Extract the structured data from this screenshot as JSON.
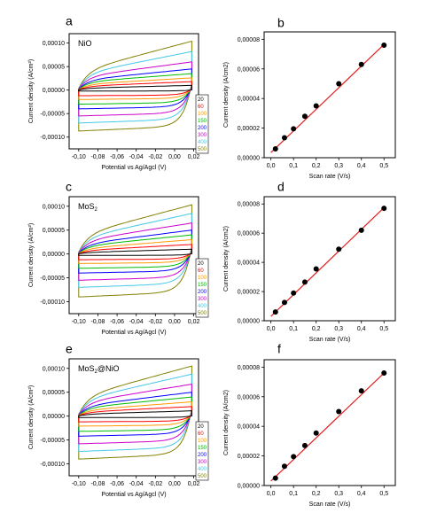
{
  "legend_entries": [
    "20",
    "60",
    "100",
    "150",
    "200",
    "300",
    "400",
    "500"
  ],
  "chart_data": [
    {
      "panel": "a",
      "type": "line",
      "title": "NiO",
      "xlabel": "Potential vs Ag/Agcl (V)",
      "ylabel": "Current density (A/cm²)",
      "xlim": [
        -0.11,
        0.025
      ],
      "ylim": [
        -0.000125,
        0.00012
      ],
      "xticks": [
        "-0,10",
        "-0,08",
        "-0,06",
        "-0,04",
        "-0,02",
        "0,00",
        "0,02"
      ],
      "yticks": [
        "-0,00010",
        "-0,00005",
        "0,00000",
        "0,00005",
        "0,00010"
      ],
      "x_range": [
        -0.1,
        0.018
      ],
      "series": [
        {
          "name": "20",
          "color": "#000000",
          "upper_start": 4e-06,
          "upper_end": 1e-05,
          "lower": -2e-06
        },
        {
          "name": "60",
          "color": "#ff0000",
          "upper_start": 8e-06,
          "upper_end": 1.8e-05,
          "lower": -1.2e-05
        },
        {
          "name": "100",
          "color": "#ff9900",
          "upper_start": 1.2e-05,
          "upper_end": 2.6e-05,
          "lower": -2e-05
        },
        {
          "name": "150",
          "color": "#00bb00",
          "upper_start": 1.7e-05,
          "upper_end": 3.5e-05,
          "lower": -3e-05
        },
        {
          "name": "200",
          "color": "#0000ff",
          "upper_start": 2.1e-05,
          "upper_end": 4.5e-05,
          "lower": -4e-05
        },
        {
          "name": "300",
          "color": "#cc00cc",
          "upper_start": 2.8e-05,
          "upper_end": 6e-05,
          "lower": -5.5e-05
        },
        {
          "name": "400",
          "color": "#44c8e8",
          "upper_start": 3.4e-05,
          "upper_end": 8.2e-05,
          "lower": -7e-05
        },
        {
          "name": "500",
          "color": "#808000",
          "upper_start": 4e-05,
          "upper_end": 0.000104,
          "lower": -8.7e-05
        }
      ]
    },
    {
      "panel": "b",
      "type": "scatter",
      "title": "",
      "xlabel": "Scan rate (V/s)",
      "ylabel": "Current density (A/cm2)",
      "xlim": [
        -0.03,
        0.55
      ],
      "ylim": [
        0.0,
        8.5e-05
      ],
      "xticks": [
        "0,0",
        "0,1",
        "0,2",
        "0,3",
        "0,4",
        "0,5"
      ],
      "yticks": [
        "0,00000",
        "0,00002",
        "0,00004",
        "0,00006",
        "0,00008"
      ],
      "x": [
        0.02,
        0.06,
        0.1,
        0.15,
        0.2,
        0.3,
        0.4,
        0.5
      ],
      "y": [
        6e-06,
        1.35e-05,
        1.95e-05,
        2.8e-05,
        3.5e-05,
        5e-05,
        6.3e-05,
        7.6e-05
      ],
      "fit": [
        [
          0.0,
          3.5e-06
        ],
        [
          0.5,
          7.65e-05
        ]
      ],
      "fit_color": "#e02020"
    },
    {
      "panel": "c",
      "type": "line",
      "title_main": "MoS",
      "title_sub": "2",
      "title_rest": "",
      "xlabel": "Potential vs Ag/Agcl (V)",
      "ylabel": "Current density (A/cm²)",
      "xlim": [
        -0.11,
        0.025
      ],
      "ylim": [
        -0.000125,
        0.00012
      ],
      "xticks": [
        "-0,10",
        "-0,08",
        "-0,06",
        "-0,04",
        "-0,02",
        "0,00",
        "0,02"
      ],
      "yticks": [
        "-0,00010",
        "-0,00005",
        "0,00000",
        "0,00005",
        "0,00010"
      ],
      "x_range": [
        -0.1,
        0.018
      ],
      "series": [
        {
          "name": "20",
          "color": "#000000",
          "upper_start": 3e-06,
          "upper_end": 1e-05,
          "lower": -3e-06
        },
        {
          "name": "60",
          "color": "#ff0000",
          "upper_start": 7e-06,
          "upper_end": 2e-05,
          "lower": -1.2e-05
        },
        {
          "name": "100",
          "color": "#ff9900",
          "upper_start": 1.1e-05,
          "upper_end": 3e-05,
          "lower": -2e-05
        },
        {
          "name": "150",
          "color": "#00bb00",
          "upper_start": 1.6e-05,
          "upper_end": 4e-05,
          "lower": -3e-05
        },
        {
          "name": "200",
          "color": "#0000ff",
          "upper_start": 2e-05,
          "upper_end": 5e-05,
          "lower": -4e-05
        },
        {
          "name": "300",
          "color": "#cc00cc",
          "upper_start": 2.7e-05,
          "upper_end": 6.5e-05,
          "lower": -5.5e-05
        },
        {
          "name": "400",
          "color": "#44c8e8",
          "upper_start": 3.3e-05,
          "upper_end": 8.5e-05,
          "lower": -7e-05
        },
        {
          "name": "500",
          "color": "#808000",
          "upper_start": 4e-05,
          "upper_end": 0.000103,
          "lower": -9e-05
        }
      ]
    },
    {
      "panel": "d",
      "type": "scatter",
      "title": "",
      "xlabel": "Scan rate (V/s)",
      "ylabel": "Current density (A/cm2)",
      "xlim": [
        -0.03,
        0.55
      ],
      "ylim": [
        0.0,
        8.5e-05
      ],
      "xticks": [
        "0,0",
        "0,1",
        "0,2",
        "0,3",
        "0,4",
        "0,5"
      ],
      "yticks": [
        "0,00000",
        "0,00002",
        "0,00004",
        "0,00006",
        "0,00008"
      ],
      "x": [
        0.02,
        0.06,
        0.1,
        0.15,
        0.2,
        0.3,
        0.4,
        0.5
      ],
      "y": [
        6e-06,
        1.25e-05,
        1.9e-05,
        2.65e-05,
        3.55e-05,
        4.9e-05,
        6.2e-05,
        7.7e-05
      ],
      "fit": [
        [
          0.0,
          3e-06
        ],
        [
          0.5,
          7.75e-05
        ]
      ],
      "fit_color": "#e02020"
    },
    {
      "panel": "e",
      "type": "line",
      "title_main": "MoS",
      "title_sub": "2",
      "title_rest": "@NiO",
      "xlabel": "Potential vs Ag/Agcl (V)",
      "ylabel": "Current density (A/cm²)",
      "xlim": [
        -0.11,
        0.025
      ],
      "ylim": [
        -0.000125,
        0.00012
      ],
      "xticks": [
        "-0,10",
        "-0,08",
        "-0,06",
        "-0,04",
        "-0,02",
        "0,00",
        "0,02"
      ],
      "yticks": [
        "-0,00010",
        "-0,00005",
        "0,00000",
        "0,00005",
        "0,00010"
      ],
      "x_range": [
        -0.1,
        0.018
      ],
      "series": [
        {
          "name": "20",
          "color": "#000000",
          "upper_start": 4e-06,
          "upper_end": 1.1e-05,
          "lower": -3e-06
        },
        {
          "name": "60",
          "color": "#ff0000",
          "upper_start": 8e-06,
          "upper_end": 2e-05,
          "lower": -1.2e-05
        },
        {
          "name": "100",
          "color": "#ff9900",
          "upper_start": 1.2e-05,
          "upper_end": 3e-05,
          "lower": -2.1e-05
        },
        {
          "name": "150",
          "color": "#00bb00",
          "upper_start": 1.7e-05,
          "upper_end": 4e-05,
          "lower": -3.2e-05
        },
        {
          "name": "200",
          "color": "#0000ff",
          "upper_start": 2.1e-05,
          "upper_end": 5e-05,
          "lower": -4.2e-05
        },
        {
          "name": "300",
          "color": "#cc00cc",
          "upper_start": 2.8e-05,
          "upper_end": 6.7e-05,
          "lower": -5.8e-05
        },
        {
          "name": "400",
          "color": "#44c8e8",
          "upper_start": 3.4e-05,
          "upper_end": 8.8e-05,
          "lower": -7.4e-05
        },
        {
          "name": "500",
          "color": "#808000",
          "upper_start": 4e-05,
          "upper_end": 0.000105,
          "lower": -9e-05
        }
      ]
    },
    {
      "panel": "f",
      "type": "scatter",
      "title": "",
      "xlabel": "Scan rate (V/s)",
      "ylabel": "Current density (A/cm2)",
      "xlim": [
        -0.03,
        0.55
      ],
      "ylim": [
        0.0,
        8.5e-05
      ],
      "xticks": [
        "0,0",
        "0,1",
        "0,2",
        "0,3",
        "0,4",
        "0,5"
      ],
      "yticks": [
        "0,00000",
        "0,00002",
        "0,00004",
        "0,00006",
        "0,00008"
      ],
      "x": [
        0.02,
        0.06,
        0.1,
        0.15,
        0.2,
        0.3,
        0.4,
        0.5
      ],
      "y": [
        5e-06,
        1.3e-05,
        1.95e-05,
        2.7e-05,
        3.55e-05,
        5e-05,
        6.4e-05,
        7.6e-05
      ],
      "fit": [
        [
          0.0,
          3e-06
        ],
        [
          0.5,
          7.6e-05
        ]
      ],
      "fit_color": "#e02020"
    }
  ]
}
